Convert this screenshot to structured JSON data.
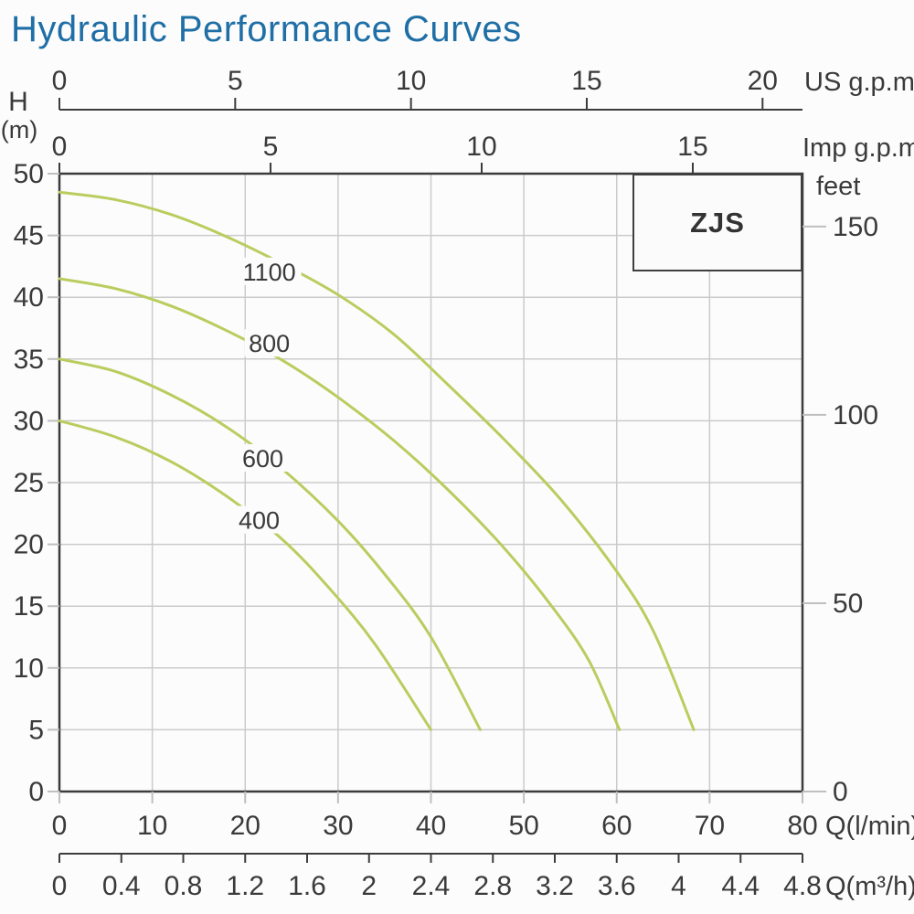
{
  "chart_data": {
    "type": "line",
    "title": "Hydraulic Performance Curves",
    "xlabel": "Q(l/min)",
    "ylabel": "H (m)",
    "xlim": [
      0,
      80
    ],
    "ylim": [
      0,
      50
    ],
    "grid": true,
    "legend_label": "ZJS",
    "series_color": "#b9cd5f",
    "axis_labels": {
      "us_gpm": "US g.p.m",
      "imp_gpm": "Imp g.p.m",
      "feet": "feet",
      "h": "H",
      "h_unit": "(m)",
      "lmin": "Q(l/min)",
      "m3h": "Q(m³/h)"
    },
    "x_ticks_lmin": [
      0,
      10,
      20,
      30,
      40,
      50,
      60,
      70,
      80
    ],
    "x_ticks_m3h_labels": [
      "0",
      "0.4",
      "0.8",
      "1.2",
      "1.6",
      "2",
      "2.4",
      "2.8",
      "3.2",
      "3.6",
      "4",
      "4.4",
      "4.8"
    ],
    "x_ticks_us_gpm": [
      0,
      5,
      10,
      15,
      20
    ],
    "x_ticks_imp_gpm": [
      0,
      5,
      10,
      15
    ],
    "y_ticks_m": [
      0,
      5,
      10,
      15,
      20,
      25,
      30,
      35,
      40,
      45,
      50
    ],
    "y_ticks_feet": [
      0,
      50,
      100,
      150
    ],
    "conversions": {
      "us_gpm_to_lmin": 3.785,
      "imp_gpm_to_lmin": 4.546,
      "m3h_to_lmin": 16.6667,
      "feet_to_m": 0.3048
    },
    "series": [
      {
        "name": "1100",
        "label_q": 22.6,
        "label_h": 42.1,
        "points_q_h": [
          [
            0,
            48.5
          ],
          [
            6,
            47.9
          ],
          [
            12,
            46.7
          ],
          [
            18,
            44.9
          ],
          [
            24,
            42.7
          ],
          [
            30,
            40.2
          ],
          [
            36,
            37.0
          ],
          [
            42,
            32.8
          ],
          [
            48,
            28.4
          ],
          [
            54,
            23.6
          ],
          [
            60,
            17.8
          ],
          [
            64,
            12.9
          ],
          [
            68.3,
            5
          ]
        ]
      },
      {
        "name": "800",
        "label_q": 22.6,
        "label_h": 36.3,
        "points_q_h": [
          [
            0,
            41.5
          ],
          [
            6,
            40.7
          ],
          [
            12,
            39.3
          ],
          [
            18,
            37.3
          ],
          [
            24,
            34.9
          ],
          [
            30,
            31.9
          ],
          [
            36,
            28.4
          ],
          [
            42,
            24.3
          ],
          [
            48,
            19.6
          ],
          [
            53,
            15.0
          ],
          [
            57,
            10.6
          ],
          [
            60.3,
            5
          ]
        ]
      },
      {
        "name": "600",
        "label_q": 21.9,
        "label_h": 27.0,
        "points_q_h": [
          [
            0,
            35
          ],
          [
            6,
            34.0
          ],
          [
            12,
            32.1
          ],
          [
            18,
            29.5
          ],
          [
            24,
            26.1
          ],
          [
            30,
            21.9
          ],
          [
            35,
            17.6
          ],
          [
            40,
            12.5
          ],
          [
            45.3,
            5
          ]
        ]
      },
      {
        "name": "400",
        "label_q": 21.5,
        "label_h": 22.0,
        "points_q_h": [
          [
            0,
            30
          ],
          [
            6,
            28.7
          ],
          [
            12,
            26.7
          ],
          [
            18,
            23.9
          ],
          [
            24,
            20.4
          ],
          [
            29,
            16.5
          ],
          [
            34,
            11.9
          ],
          [
            40,
            5
          ]
        ]
      }
    ]
  }
}
